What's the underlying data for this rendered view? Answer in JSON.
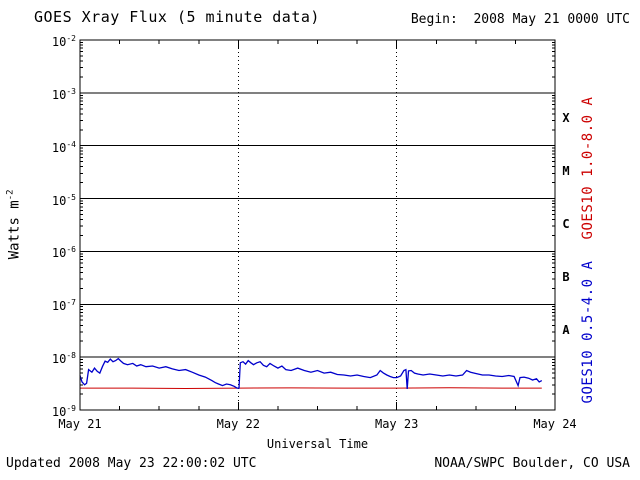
{
  "header": {
    "title": "GOES Xray Flux (5 minute data)",
    "begin_label": "Begin:  2008 May 21 0000 UTC"
  },
  "footer": {
    "updated": "Updated 2008 May 23 22:00:02 UTC",
    "source": "NOAA/SWPC Boulder, CO USA"
  },
  "axes": {
    "y_title_base": "Watts m",
    "y_title_exp": "-2",
    "x_title": "Universal Time"
  },
  "chart_data": {
    "type": "line",
    "title": "GOES Xray Flux (5 minute data)",
    "xlabel": "Universal Time",
    "ylabel": "Watts m^-2",
    "x_unit": "hours since 2008 May 21 0000 UTC",
    "xlim": [
      0,
      72
    ],
    "ylim_exp": [
      -9,
      -2
    ],
    "y_log": true,
    "grid": "horizontal-solid-decades, vertical-dotted-days",
    "x_ticks": [
      {
        "t": 0,
        "label": "May 21"
      },
      {
        "t": 24,
        "label": "May 22"
      },
      {
        "t": 48,
        "label": "May 23"
      },
      {
        "t": 72,
        "label": "May 24"
      }
    ],
    "x_minor_tick_hours": 6,
    "day_gridlines_t": [
      24,
      48
    ],
    "y_ticks_exp": [
      -2,
      -3,
      -4,
      -5,
      -6,
      -7,
      -8,
      -9
    ],
    "flare_classes": [
      {
        "label": "X",
        "exp_range": [
          -4,
          -3
        ]
      },
      {
        "label": "M",
        "exp_range": [
          -5,
          -4
        ]
      },
      {
        "label": "C",
        "exp_range": [
          -6,
          -5
        ]
      },
      {
        "label": "B",
        "exp_range": [
          -7,
          -6
        ]
      },
      {
        "label": "A",
        "exp_range": [
          -8,
          -7
        ]
      }
    ],
    "series": [
      {
        "name": "GOES10 1.0-8.0 A",
        "color": "#cc0000",
        "width": 1,
        "points": [
          [
            0,
            2.6e-09
          ],
          [
            8,
            2.6e-09
          ],
          [
            16,
            2.55e-09
          ],
          [
            24,
            2.6e-09
          ],
          [
            32,
            2.62e-09
          ],
          [
            40,
            2.6e-09
          ],
          [
            48,
            2.6e-09
          ],
          [
            56,
            2.63e-09
          ],
          [
            64,
            2.6e-09
          ],
          [
            70,
            2.6e-09
          ]
        ]
      },
      {
        "name": "GOES10 0.5-4.0 A",
        "color": "#0000cc",
        "width": 1.3,
        "points": [
          [
            0,
            4.5e-09
          ],
          [
            0.3,
            3.4e-09
          ],
          [
            0.7,
            3e-09
          ],
          [
            1.0,
            3.2e-09
          ],
          [
            1.3,
            5.8e-09
          ],
          [
            1.8,
            5.2e-09
          ],
          [
            2.2,
            6.2e-09
          ],
          [
            2.6,
            5.4e-09
          ],
          [
            3.0,
            5e-09
          ],
          [
            3.4,
            6.6e-09
          ],
          [
            3.8,
            8.4e-09
          ],
          [
            4.2,
            8e-09
          ],
          [
            4.6,
            9.2e-09
          ],
          [
            5.0,
            8.2e-09
          ],
          [
            5.4,
            8.6e-09
          ],
          [
            5.8,
            9.4e-09
          ],
          [
            6.2,
            8.4e-09
          ],
          [
            6.6,
            7.6e-09
          ],
          [
            7.2,
            7.2e-09
          ],
          [
            8.0,
            7.6e-09
          ],
          [
            8.6,
            6.8e-09
          ],
          [
            9.2,
            7.2e-09
          ],
          [
            10,
            6.6e-09
          ],
          [
            11,
            6.8e-09
          ],
          [
            12,
            6.2e-09
          ],
          [
            13,
            6.6e-09
          ],
          [
            14,
            6e-09
          ],
          [
            15,
            5.6e-09
          ],
          [
            16,
            5.8e-09
          ],
          [
            17,
            5.2e-09
          ],
          [
            18,
            4.6e-09
          ],
          [
            19,
            4.2e-09
          ],
          [
            20,
            3.6e-09
          ],
          [
            20.5,
            3.3e-09
          ],
          [
            21,
            3.1e-09
          ],
          [
            21.6,
            2.9e-09
          ],
          [
            22.2,
            3.1e-09
          ],
          [
            22.8,
            3e-09
          ],
          [
            23.4,
            2.8e-09
          ],
          [
            23.8,
            2.6e-09
          ],
          [
            24.1,
            2.6e-09
          ],
          [
            24.3,
            7.8e-09
          ],
          [
            24.7,
            8.2e-09
          ],
          [
            25.1,
            7.4e-09
          ],
          [
            25.5,
            8.6e-09
          ],
          [
            25.9,
            7.8e-09
          ],
          [
            26.3,
            7.2e-09
          ],
          [
            26.8,
            7.8e-09
          ],
          [
            27.3,
            8.2e-09
          ],
          [
            27.8,
            7e-09
          ],
          [
            28.3,
            6.6e-09
          ],
          [
            28.8,
            7.6e-09
          ],
          [
            29.4,
            6.8e-09
          ],
          [
            30,
            6.2e-09
          ],
          [
            30.6,
            6.8e-09
          ],
          [
            31.2,
            5.8e-09
          ],
          [
            32,
            5.6e-09
          ],
          [
            33,
            6.2e-09
          ],
          [
            34,
            5.6e-09
          ],
          [
            35,
            5.2e-09
          ],
          [
            36,
            5.6e-09
          ],
          [
            37,
            5e-09
          ],
          [
            38,
            5.2e-09
          ],
          [
            39,
            4.7e-09
          ],
          [
            40,
            4.6e-09
          ],
          [
            41,
            4.4e-09
          ],
          [
            42,
            4.6e-09
          ],
          [
            43,
            4.3e-09
          ],
          [
            44,
            4.1e-09
          ],
          [
            45,
            4.6e-09
          ],
          [
            45.5,
            5.6e-09
          ],
          [
            46,
            5e-09
          ],
          [
            46.5,
            4.6e-09
          ],
          [
            47,
            4.3e-09
          ],
          [
            47.5,
            4.1e-09
          ],
          [
            48,
            4.1e-09
          ],
          [
            48.6,
            4.4e-09
          ],
          [
            49.1,
            5.6e-09
          ],
          [
            49.4,
            5.8e-09
          ],
          [
            49.6,
            2.5e-09
          ],
          [
            49.8,
            5.5e-09
          ],
          [
            50.2,
            5.6e-09
          ],
          [
            50.7,
            5e-09
          ],
          [
            51.2,
            4.8e-09
          ],
          [
            52,
            4.6e-09
          ],
          [
            53,
            4.8e-09
          ],
          [
            54,
            4.6e-09
          ],
          [
            55,
            4.4e-09
          ],
          [
            56,
            4.6e-09
          ],
          [
            57,
            4.4e-09
          ],
          [
            58,
            4.6e-09
          ],
          [
            58.6,
            5.6e-09
          ],
          [
            59.2,
            5.2e-09
          ],
          [
            60,
            4.9e-09
          ],
          [
            61,
            4.6e-09
          ],
          [
            62,
            4.6e-09
          ],
          [
            63,
            4.4e-09
          ],
          [
            64,
            4.3e-09
          ],
          [
            65,
            4.5e-09
          ],
          [
            65.8,
            4.3e-09
          ],
          [
            66.4,
            2.9e-09
          ],
          [
            66.7,
            4.1e-09
          ],
          [
            67.3,
            4.2e-09
          ],
          [
            68,
            4e-09
          ],
          [
            68.6,
            3.7e-09
          ],
          [
            69.2,
            3.9e-09
          ],
          [
            69.6,
            3.4e-09
          ],
          [
            70,
            3.6e-09
          ]
        ]
      }
    ]
  }
}
